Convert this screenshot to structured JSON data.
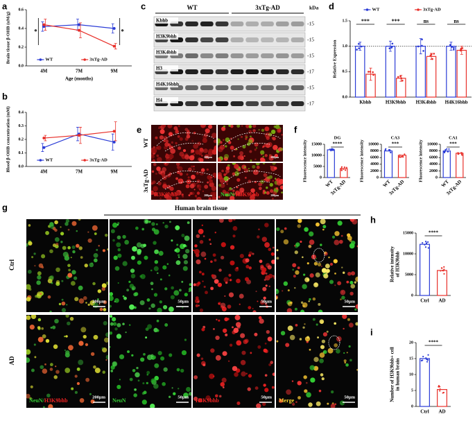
{
  "panel_labels": [
    "a",
    "b",
    "c",
    "d",
    "e",
    "f",
    "g",
    "h",
    "i"
  ],
  "chart_data": [
    {
      "type": "line",
      "ylabel": "Brain tissue β-OHB (uM/g)",
      "xlabel": "Age (months)",
      "categories": [
        "4M",
        "7M",
        "9M"
      ],
      "series": [
        {
          "name": "WT",
          "color": "#2a3bd6",
          "values": [
            0.42,
            0.44,
            0.4
          ],
          "errors": [
            0.05,
            0.06,
            0.05
          ]
        },
        {
          "name": "3xTg-AD",
          "color": "#e8302a",
          "values": [
            0.44,
            0.38,
            0.21
          ],
          "errors": [
            0.06,
            0.08,
            0.03
          ]
        }
      ],
      "ylim": [
        0,
        0.6
      ],
      "yticks": [
        {
          "value": 0,
          "label": "0.0"
        },
        0.2,
        0.4,
        0.6
      ],
      "annotations": [
        "*",
        "*"
      ],
      "legend": "lower center"
    },
    {
      "type": "line",
      "ylabel": "Blood β-OHB concentration (mM)",
      "categories": [
        "4M",
        "7M",
        "9M"
      ],
      "series": [
        {
          "name": "WT",
          "color": "#2a3bd6",
          "values": [
            0.14,
            0.24,
            0.18
          ],
          "errors": [
            0.03,
            0.05,
            0.06
          ]
        },
        {
          "name": "3xTg-AD",
          "color": "#e8302a",
          "values": [
            0.21,
            0.23,
            0.26
          ],
          "errors": [
            0.02,
            0.06,
            0.07
          ]
        }
      ],
      "ylim": [
        0,
        0.4
      ],
      "yticks": [
        {
          "value": 0,
          "label": "0.0"
        },
        0.1,
        0.2,
        0.3,
        0.4
      ],
      "legend": "lower center"
    },
    {
      "type": "bar",
      "ylabel": "Relative Expression",
      "categories": [
        "Kbhb",
        "H3K9bhb",
        "H3K4bhb",
        "H4K16bhb"
      ],
      "series": [
        {
          "name": "WT",
          "color": "#2a3bd6",
          "values": [
            1.0,
            1.0,
            1.0,
            1.0
          ],
          "errors": [
            0.08,
            0.1,
            0.15,
            0.08
          ]
        },
        {
          "name": "3xTg-AD",
          "color": "#e8302a",
          "values": [
            0.45,
            0.37,
            0.8,
            0.92
          ],
          "errors": [
            0.12,
            0.06,
            0.06,
            0.08
          ]
        }
      ],
      "ylim": [
        0,
        1.5
      ],
      "yticks": [
        {
          "value": 0,
          "label": "0.0"
        },
        0.5,
        {
          "value": 1,
          "label": "1.0"
        },
        1.5
      ],
      "reference_line": 1,
      "significance": [
        "***",
        "***",
        "ns",
        "ns"
      ],
      "legend": "top"
    },
    {
      "type": "bar",
      "title": "DG",
      "ylabel": "Fluorescence intensity",
      "categories": [
        "WT",
        "3xTg-AD"
      ],
      "values": [
        12500,
        4000
      ],
      "colors": [
        "#2a3bd6",
        "#e8302a"
      ],
      "ylim": [
        0,
        15000
      ],
      "yticks": [
        0,
        5000,
        10000,
        15000
      ],
      "significance": "****"
    },
    {
      "type": "bar",
      "title": "CA3",
      "ylabel": "Fluorescence intensity",
      "categories": [
        "WT",
        "3xTg-AD"
      ],
      "values": [
        8000,
        6700
      ],
      "colors": [
        "#2a3bd6",
        "#e8302a"
      ],
      "ylim": [
        0,
        10000
      ],
      "yticks": [
        0,
        2000,
        4000,
        6000,
        8000,
        10000
      ],
      "significance": "***"
    },
    {
      "type": "bar",
      "title": "CA1",
      "ylabel": "Fluorescence intensity",
      "categories": [
        "WT",
        "3xTg-AD"
      ],
      "values": [
        8000,
        7300
      ],
      "colors": [
        "#2a3bd6",
        "#e8302a"
      ],
      "ylim": [
        0,
        10000
      ],
      "yticks": [
        0,
        2000,
        4000,
        6000,
        8000,
        10000
      ],
      "significance": "***"
    },
    {
      "type": "bar",
      "ylabel": [
        "Relative intensity",
        "of H3K9bhb"
      ],
      "categories": [
        "Ctrl",
        "AD"
      ],
      "values": [
        12300,
        6000
      ],
      "colors": [
        "#2a3bd6",
        "#e8302a"
      ],
      "ylim": [
        0,
        15000
      ],
      "yticks": [
        0,
        5000,
        10000,
        15000
      ],
      "significance": "****"
    },
    {
      "type": "bar",
      "ylabel": [
        "Number of H3K9bhb+ cell",
        "in human brain"
      ],
      "categories": [
        "Ctrl",
        "AD"
      ],
      "values": [
        15,
        5.3
      ],
      "colors": [
        "#2a3bd6",
        "#e8302a"
      ],
      "ylim": [
        0,
        20
      ],
      "yticks": [
        0,
        5,
        10,
        15,
        20
      ],
      "significance": "****"
    }
  ],
  "blot": {
    "groups": [
      "WT",
      "3xTg-AD"
    ],
    "unit": "kDa",
    "rows": [
      {
        "name": "Kbhb",
        "marker": "-15"
      },
      {
        "name": "H3K9bhb",
        "marker": "-15"
      },
      {
        "name": "H3K4bhb",
        "marker": "-15"
      },
      {
        "name": "H3",
        "marker": "-17"
      },
      {
        "name": "H4K16bhb",
        "marker": "-15"
      },
      {
        "name": "H4",
        "marker": "-17"
      }
    ]
  },
  "mouse_staining": {
    "rows": [
      "WT",
      "3xTg-AD"
    ],
    "stain_single": "H3K9bhb",
    "stain_merge": [
      "NeuN/",
      "H3K9bhb"
    ],
    "scale": "200μm"
  },
  "human_staining": {
    "title": "Human brain tissue",
    "rows": [
      "Ctrl",
      "AD"
    ],
    "channels": [
      [
        "NeuN/",
        "H3K9bhb"
      ],
      [
        "NeuN"
      ],
      [
        "H3K9bhb"
      ],
      [
        "Merge"
      ]
    ],
    "scales": [
      "200μm",
      "50μm",
      "50μm",
      "50μm"
    ]
  }
}
